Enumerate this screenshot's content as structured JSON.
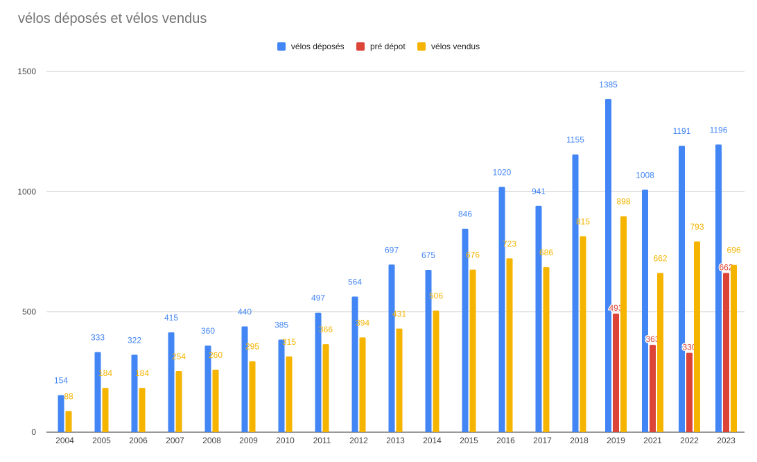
{
  "chart_data": {
    "type": "bar",
    "title": "vélos déposés et vélos vendus",
    "xlabel": "",
    "ylabel": "",
    "ylim": [
      0,
      1500
    ],
    "yticks": [
      0,
      500,
      1000,
      1500
    ],
    "grid": true,
    "legend_position": "top",
    "categories": [
      "2004",
      "2005",
      "2006",
      "2007",
      "2008",
      "2009",
      "2010",
      "2011",
      "2012",
      "2013",
      "2014",
      "2015",
      "2016",
      "2017",
      "2018",
      "2019",
      "2021",
      "2022",
      "2023"
    ],
    "series": [
      {
        "name": "vélos déposés",
        "color": "#4285f4",
        "values": [
          154,
          333,
          322,
          415,
          360,
          440,
          385,
          497,
          564,
          697,
          675,
          846,
          1020,
          941,
          1155,
          1385,
          1008,
          1191,
          1196
        ]
      },
      {
        "name": "pré dépot",
        "color": "#db4437",
        "values": [
          null,
          null,
          null,
          null,
          null,
          null,
          null,
          null,
          null,
          null,
          null,
          null,
          null,
          null,
          null,
          493,
          363,
          330,
          662
        ]
      },
      {
        "name": "vélos vendus",
        "color": "#f4b400",
        "values": [
          88,
          184,
          184,
          254,
          260,
          295,
          315,
          366,
          394,
          431,
          506,
          676,
          723,
          686,
          815,
          898,
          662,
          793,
          696
        ]
      }
    ]
  }
}
